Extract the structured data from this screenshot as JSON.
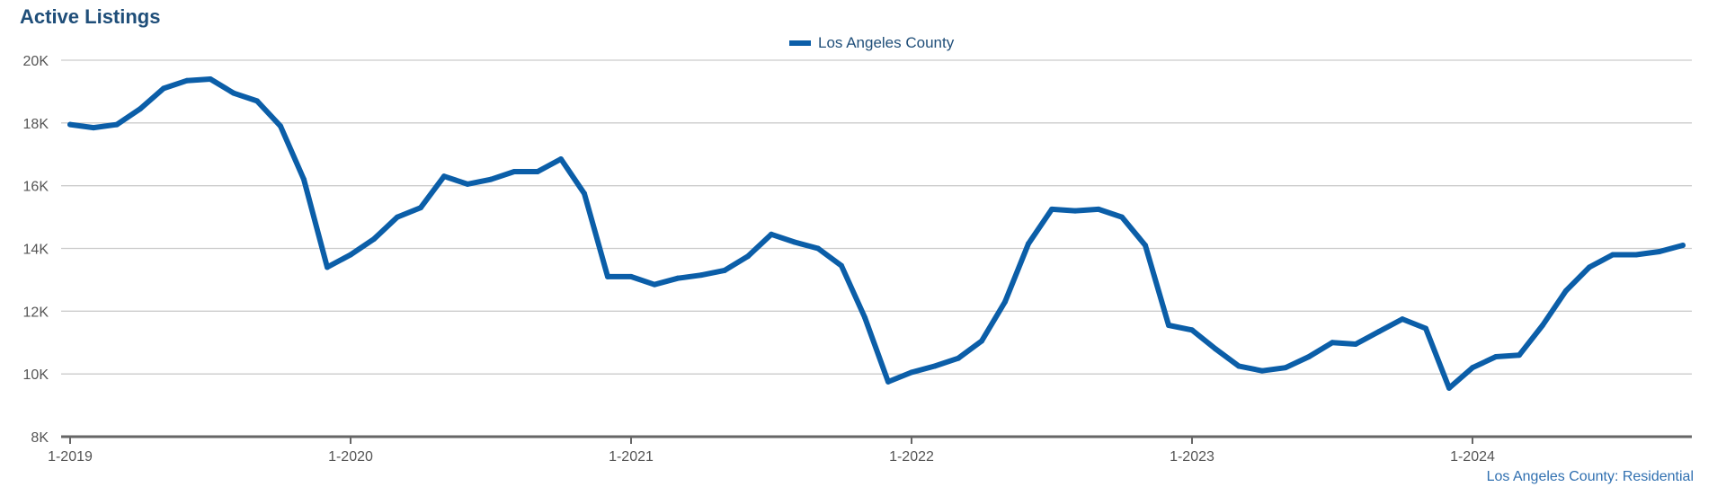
{
  "title": "Active Listings",
  "legend": {
    "label": "Los Angeles County"
  },
  "footer": "Los Angeles County: Residential",
  "colors": {
    "series": "#0b5ea8",
    "title": "#1f4e79",
    "grid": "#cccccc",
    "axis": "#666666"
  },
  "chart_data": {
    "type": "line",
    "title": "Active Listings",
    "xlabel": "",
    "ylabel": "",
    "ylim": [
      8000,
      20000
    ],
    "y_ticks": [
      8000,
      10000,
      12000,
      14000,
      16000,
      18000,
      20000
    ],
    "y_tick_labels": [
      "8K",
      "10K",
      "12K",
      "14K",
      "16K",
      "18K",
      "20K"
    ],
    "x_tick_labels": [
      "1-2019",
      "1-2020",
      "1-2021",
      "1-2022",
      "1-2023",
      "1-2024"
    ],
    "x_start": "2019-01",
    "x_end": "2024-10",
    "grid": true,
    "legend_position": "top-center",
    "series": [
      {
        "name": "Los Angeles County",
        "x": [
          "2019-01",
          "2019-02",
          "2019-03",
          "2019-04",
          "2019-05",
          "2019-06",
          "2019-07",
          "2019-08",
          "2019-09",
          "2019-10",
          "2019-11",
          "2019-12",
          "2020-01",
          "2020-02",
          "2020-03",
          "2020-04",
          "2020-05",
          "2020-06",
          "2020-07",
          "2020-08",
          "2020-09",
          "2020-10",
          "2020-11",
          "2020-12",
          "2021-01",
          "2021-02",
          "2021-03",
          "2021-04",
          "2021-05",
          "2021-06",
          "2021-07",
          "2021-08",
          "2021-09",
          "2021-10",
          "2021-11",
          "2021-12",
          "2022-01",
          "2022-02",
          "2022-03",
          "2022-04",
          "2022-05",
          "2022-06",
          "2022-07",
          "2022-08",
          "2022-09",
          "2022-10",
          "2022-11",
          "2022-12",
          "2023-01",
          "2023-02",
          "2023-03",
          "2023-04",
          "2023-05",
          "2023-06",
          "2023-07",
          "2023-08",
          "2023-09",
          "2023-10",
          "2023-11",
          "2023-12",
          "2024-01",
          "2024-02",
          "2024-03",
          "2024-04",
          "2024-05",
          "2024-06",
          "2024-07",
          "2024-08",
          "2024-09",
          "2024-10"
        ],
        "values": [
          17950,
          17850,
          17950,
          18450,
          19100,
          19350,
          19400,
          18950,
          18700,
          17900,
          16200,
          13400,
          13800,
          14300,
          15000,
          15300,
          16300,
          16050,
          16200,
          16450,
          16450,
          16850,
          15750,
          13100,
          13100,
          12850,
          13050,
          13150,
          13300,
          13750,
          14450,
          14200,
          14000,
          13450,
          11800,
          9750,
          10050,
          10250,
          10500,
          11050,
          12300,
          14150,
          15250,
          15200,
          15250,
          15000,
          14100,
          11550,
          11400,
          10800,
          10250,
          10100,
          10200,
          10550,
          11000,
          10950,
          11350,
          11750,
          11450,
          9550,
          10200,
          10550,
          10600,
          11550,
          12650,
          13400,
          13800,
          13800,
          13900,
          14100
        ]
      }
    ]
  }
}
